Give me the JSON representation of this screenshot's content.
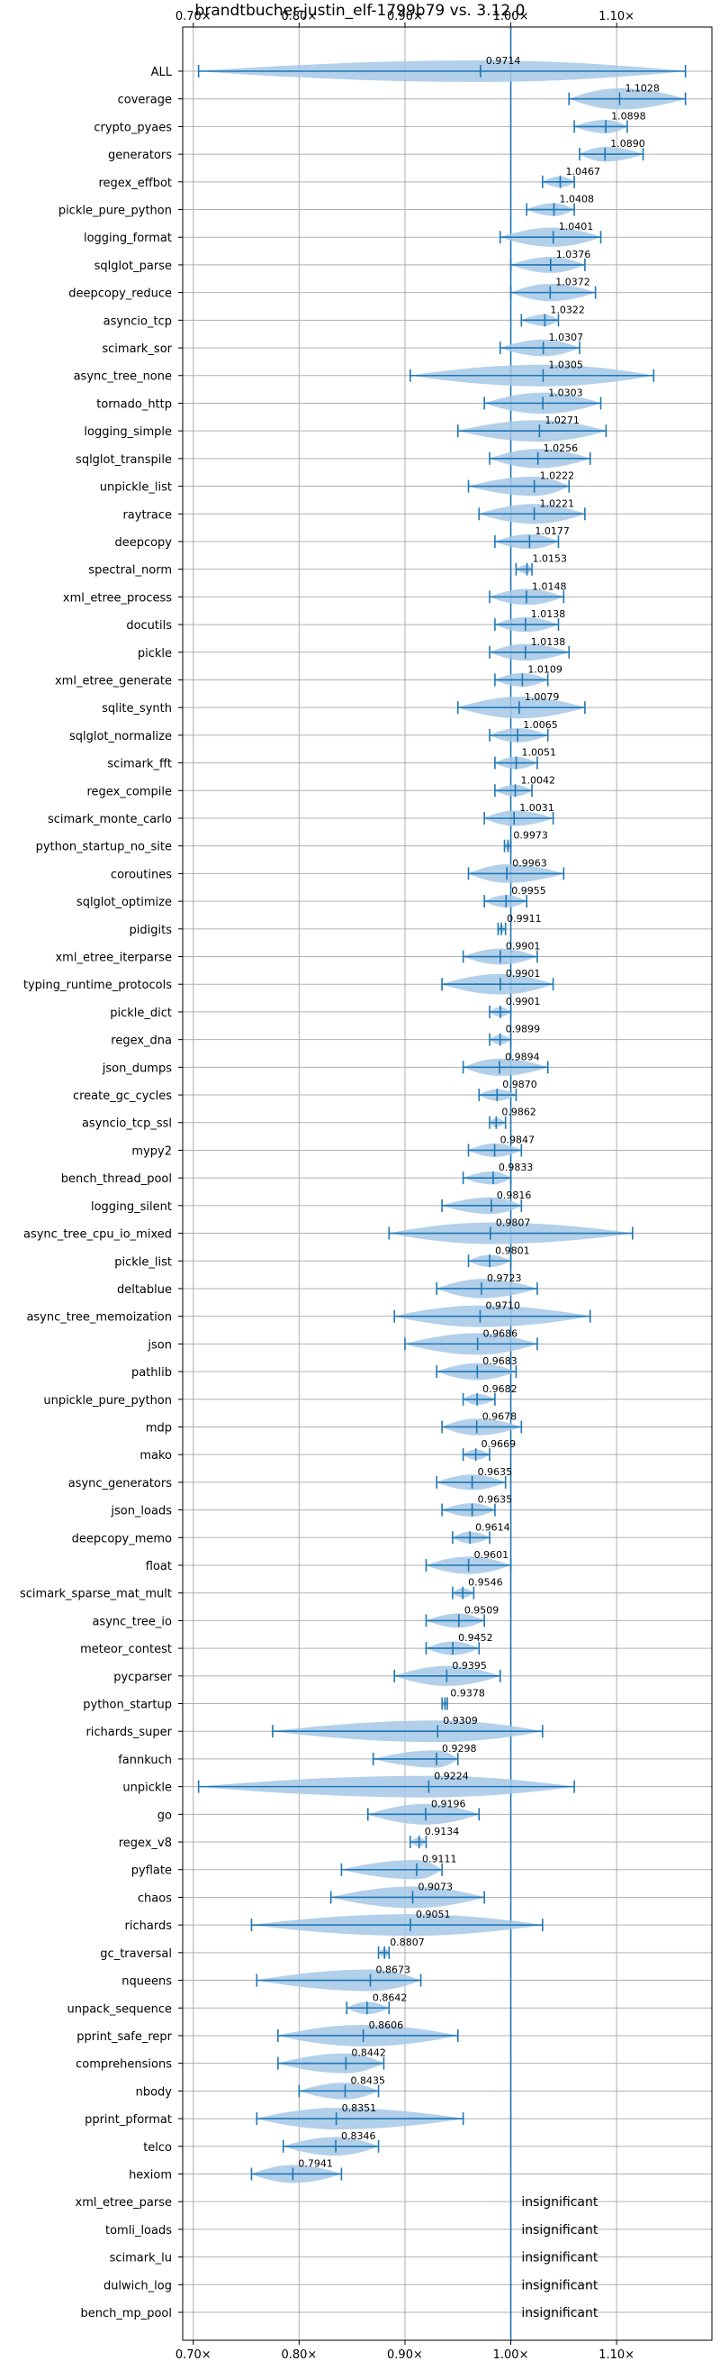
{
  "chart_data": {
    "type": "violin",
    "title": "brandtbucher-justin_elf-1799b79 vs. 3.12.0",
    "xlabel": "",
    "ylabel": "",
    "xlim": [
      0.69,
      1.19
    ],
    "xticks": [
      0.7,
      0.8,
      0.9,
      1.0,
      1.1
    ],
    "xtick_labels": [
      "0.70×",
      "0.80×",
      "0.90×",
      "1.00×",
      "1.10×"
    ],
    "reference_line": 1.0,
    "grid": true,
    "colors": {
      "violin": "#a6c8e6",
      "whisker": "#1f77b4",
      "ref_line": "#1f77b4",
      "grid": "#b0b0b0"
    },
    "insignificant_text": "insignificant",
    "benchmarks": [
      {
        "name": "ALL",
        "label": "0.9714",
        "median": 0.9714,
        "min": 0.705,
        "max": 1.165
      },
      {
        "name": "coverage",
        "label": "1.1028",
        "median": 1.1028,
        "min": 1.055,
        "max": 1.165
      },
      {
        "name": "crypto_pyaes",
        "label": "1.0898",
        "median": 1.0898,
        "min": 1.06,
        "max": 1.11
      },
      {
        "name": "generators",
        "label": "1.0890",
        "median": 1.089,
        "min": 1.065,
        "max": 1.125
      },
      {
        "name": "regex_effbot",
        "label": "1.0467",
        "median": 1.0467,
        "min": 1.03,
        "max": 1.06
      },
      {
        "name": "pickle_pure_python",
        "label": "1.0408",
        "median": 1.0408,
        "min": 1.015,
        "max": 1.06
      },
      {
        "name": "logging_format",
        "label": "1.0401",
        "median": 1.0401,
        "min": 0.99,
        "max": 1.085
      },
      {
        "name": "sqlglot_parse",
        "label": "1.0376",
        "median": 1.0376,
        "min": 1.0,
        "max": 1.07
      },
      {
        "name": "deepcopy_reduce",
        "label": "1.0372",
        "median": 1.0372,
        "min": 1.0,
        "max": 1.08
      },
      {
        "name": "asyncio_tcp",
        "label": "1.0322",
        "median": 1.0322,
        "min": 1.01,
        "max": 1.045
      },
      {
        "name": "scimark_sor",
        "label": "1.0307",
        "median": 1.0307,
        "min": 0.99,
        "max": 1.065
      },
      {
        "name": "async_tree_none",
        "label": "1.0305",
        "median": 1.0305,
        "min": 0.905,
        "max": 1.135
      },
      {
        "name": "tornado_http",
        "label": "1.0303",
        "median": 1.0303,
        "min": 0.975,
        "max": 1.085
      },
      {
        "name": "logging_simple",
        "label": "1.0271",
        "median": 1.0271,
        "min": 0.95,
        "max": 1.09
      },
      {
        "name": "sqlglot_transpile",
        "label": "1.0256",
        "median": 1.0256,
        "min": 0.98,
        "max": 1.075
      },
      {
        "name": "unpickle_list",
        "label": "1.0222",
        "median": 1.0222,
        "min": 0.96,
        "max": 1.055
      },
      {
        "name": "raytrace",
        "label": "1.0221",
        "median": 1.0221,
        "min": 0.97,
        "max": 1.07
      },
      {
        "name": "deepcopy",
        "label": "1.0177",
        "median": 1.0177,
        "min": 0.985,
        "max": 1.045
      },
      {
        "name": "spectral_norm",
        "label": "1.0153",
        "median": 1.0153,
        "min": 1.005,
        "max": 1.02
      },
      {
        "name": "xml_etree_process",
        "label": "1.0148",
        "median": 1.0148,
        "min": 0.98,
        "max": 1.05
      },
      {
        "name": "docutils",
        "label": "1.0138",
        "median": 1.0138,
        "min": 0.985,
        "max": 1.045
      },
      {
        "name": "pickle",
        "label": "1.0138",
        "median": 1.0138,
        "min": 0.98,
        "max": 1.055
      },
      {
        "name": "xml_etree_generate",
        "label": "1.0109",
        "median": 1.0109,
        "min": 0.985,
        "max": 1.035
      },
      {
        "name": "sqlite_synth",
        "label": "1.0079",
        "median": 1.0079,
        "min": 0.95,
        "max": 1.07
      },
      {
        "name": "sqlglot_normalize",
        "label": "1.0065",
        "median": 1.0065,
        "min": 0.98,
        "max": 1.035
      },
      {
        "name": "scimark_fft",
        "label": "1.0051",
        "median": 1.0051,
        "min": 0.985,
        "max": 1.025
      },
      {
        "name": "regex_compile",
        "label": "1.0042",
        "median": 1.0042,
        "min": 0.985,
        "max": 1.02
      },
      {
        "name": "scimark_monte_carlo",
        "label": "1.0031",
        "median": 1.0031,
        "min": 0.975,
        "max": 1.04
      },
      {
        "name": "python_startup_no_site",
        "label": "0.9973",
        "median": 0.9973,
        "min": 0.994,
        "max": 1.0
      },
      {
        "name": "coroutines",
        "label": "0.9963",
        "median": 0.9963,
        "min": 0.96,
        "max": 1.05
      },
      {
        "name": "sqlglot_optimize",
        "label": "0.9955",
        "median": 0.9955,
        "min": 0.975,
        "max": 1.015
      },
      {
        "name": "pidigits",
        "label": "0.9911",
        "median": 0.9911,
        "min": 0.988,
        "max": 0.995
      },
      {
        "name": "xml_etree_iterparse",
        "label": "0.9901",
        "median": 0.9901,
        "min": 0.955,
        "max": 1.025
      },
      {
        "name": "typing_runtime_protocols",
        "label": "0.9901",
        "median": 0.9901,
        "min": 0.935,
        "max": 1.04
      },
      {
        "name": "pickle_dict",
        "label": "0.9901",
        "median": 0.9901,
        "min": 0.98,
        "max": 1.0
      },
      {
        "name": "regex_dna",
        "label": "0.9899",
        "median": 0.9899,
        "min": 0.98,
        "max": 1.0
      },
      {
        "name": "json_dumps",
        "label": "0.9894",
        "median": 0.9894,
        "min": 0.955,
        "max": 1.035
      },
      {
        "name": "create_gc_cycles",
        "label": "0.9870",
        "median": 0.987,
        "min": 0.97,
        "max": 1.005
      },
      {
        "name": "asyncio_tcp_ssl",
        "label": "0.9862",
        "median": 0.9862,
        "min": 0.98,
        "max": 0.995
      },
      {
        "name": "mypy2",
        "label": "0.9847",
        "median": 0.9847,
        "min": 0.96,
        "max": 1.01
      },
      {
        "name": "bench_thread_pool",
        "label": "0.9833",
        "median": 0.9833,
        "min": 0.955,
        "max": 1.0
      },
      {
        "name": "logging_silent",
        "label": "0.9816",
        "median": 0.9816,
        "min": 0.935,
        "max": 1.01
      },
      {
        "name": "async_tree_cpu_io_mixed",
        "label": "0.9807",
        "median": 0.9807,
        "min": 0.885,
        "max": 1.115
      },
      {
        "name": "pickle_list",
        "label": "0.9801",
        "median": 0.9801,
        "min": 0.96,
        "max": 1.0
      },
      {
        "name": "deltablue",
        "label": "0.9723",
        "median": 0.9723,
        "min": 0.93,
        "max": 1.025
      },
      {
        "name": "async_tree_memoization",
        "label": "0.9710",
        "median": 0.971,
        "min": 0.89,
        "max": 1.075
      },
      {
        "name": "json",
        "label": "0.9686",
        "median": 0.9686,
        "min": 0.9,
        "max": 1.025
      },
      {
        "name": "pathlib",
        "label": "0.9683",
        "median": 0.9683,
        "min": 0.93,
        "max": 1.005
      },
      {
        "name": "unpickle_pure_python",
        "label": "0.9682",
        "median": 0.9682,
        "min": 0.955,
        "max": 0.985
      },
      {
        "name": "mdp",
        "label": "0.9678",
        "median": 0.9678,
        "min": 0.935,
        "max": 1.01
      },
      {
        "name": "mako",
        "label": "0.9669",
        "median": 0.9669,
        "min": 0.955,
        "max": 0.98
      },
      {
        "name": "async_generators",
        "label": "0.9635",
        "median": 0.9635,
        "min": 0.93,
        "max": 0.995
      },
      {
        "name": "json_loads",
        "label": "0.9635",
        "median": 0.9635,
        "min": 0.935,
        "max": 0.985
      },
      {
        "name": "deepcopy_memo",
        "label": "0.9614",
        "median": 0.9614,
        "min": 0.945,
        "max": 0.98
      },
      {
        "name": "float",
        "label": "0.9601",
        "median": 0.9601,
        "min": 0.92,
        "max": 1.0
      },
      {
        "name": "scimark_sparse_mat_mult",
        "label": "0.9546",
        "median": 0.9546,
        "min": 0.945,
        "max": 0.965
      },
      {
        "name": "async_tree_io",
        "label": "0.9509",
        "median": 0.9509,
        "min": 0.92,
        "max": 0.975
      },
      {
        "name": "meteor_contest",
        "label": "0.9452",
        "median": 0.9452,
        "min": 0.92,
        "max": 0.97
      },
      {
        "name": "pycparser",
        "label": "0.9395",
        "median": 0.9395,
        "min": 0.89,
        "max": 0.99
      },
      {
        "name": "python_startup",
        "label": "0.9378",
        "median": 0.9378,
        "min": 0.935,
        "max": 0.94
      },
      {
        "name": "richards_super",
        "label": "0.9309",
        "median": 0.9309,
        "min": 0.775,
        "max": 1.03
      },
      {
        "name": "fannkuch",
        "label": "0.9298",
        "median": 0.9298,
        "min": 0.87,
        "max": 0.95
      },
      {
        "name": "unpickle",
        "label": "0.9224",
        "median": 0.9224,
        "min": 0.705,
        "max": 1.06
      },
      {
        "name": "go",
        "label": "0.9196",
        "median": 0.9196,
        "min": 0.865,
        "max": 0.97
      },
      {
        "name": "regex_v8",
        "label": "0.9134",
        "median": 0.9134,
        "min": 0.905,
        "max": 0.92
      },
      {
        "name": "pyflate",
        "label": "0.9111",
        "median": 0.9111,
        "min": 0.84,
        "max": 0.935
      },
      {
        "name": "chaos",
        "label": "0.9073",
        "median": 0.9073,
        "min": 0.83,
        "max": 0.975
      },
      {
        "name": "richards",
        "label": "0.9051",
        "median": 0.9051,
        "min": 0.755,
        "max": 1.03
      },
      {
        "name": "gc_traversal",
        "label": "0.8807",
        "median": 0.8807,
        "min": 0.875,
        "max": 0.885
      },
      {
        "name": "nqueens",
        "label": "0.8673",
        "median": 0.8673,
        "min": 0.76,
        "max": 0.915
      },
      {
        "name": "unpack_sequence",
        "label": "0.8642",
        "median": 0.8642,
        "min": 0.845,
        "max": 0.885
      },
      {
        "name": "pprint_safe_repr",
        "label": "0.8606",
        "median": 0.8606,
        "min": 0.78,
        "max": 0.95
      },
      {
        "name": "comprehensions",
        "label": "0.8442",
        "median": 0.8442,
        "min": 0.78,
        "max": 0.88
      },
      {
        "name": "nbody",
        "label": "0.8435",
        "median": 0.8435,
        "min": 0.8,
        "max": 0.875
      },
      {
        "name": "pprint_pformat",
        "label": "0.8351",
        "median": 0.8351,
        "min": 0.76,
        "max": 0.955
      },
      {
        "name": "telco",
        "label": "0.8346",
        "median": 0.8346,
        "min": 0.785,
        "max": 0.875
      },
      {
        "name": "hexiom",
        "label": "0.7941",
        "median": 0.7941,
        "min": 0.755,
        "max": 0.84
      },
      {
        "name": "xml_etree_parse",
        "label": "",
        "insignificant": true
      },
      {
        "name": "tomli_loads",
        "label": "",
        "insignificant": true
      },
      {
        "name": "scimark_lu",
        "label": "",
        "insignificant": true
      },
      {
        "name": "dulwich_log",
        "label": "",
        "insignificant": true
      },
      {
        "name": "bench_mp_pool",
        "label": "",
        "insignificant": true
      }
    ]
  }
}
